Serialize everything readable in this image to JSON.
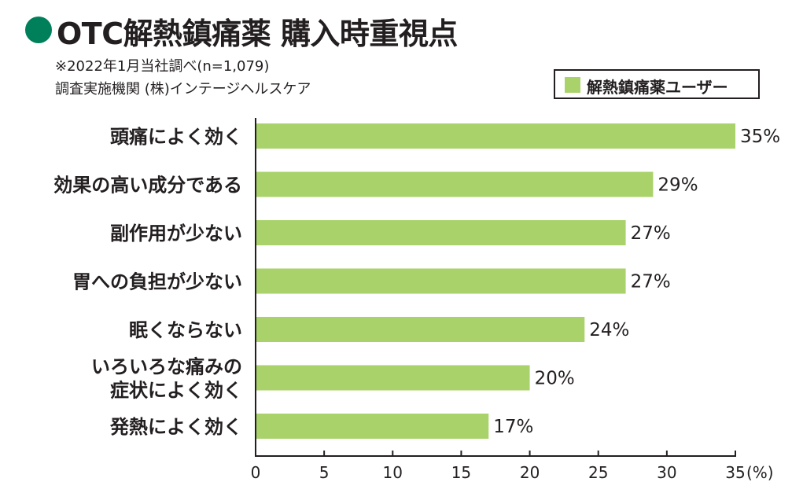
{
  "title": "OTC解熱鎮痛薬 購入時重視点",
  "notes": [
    "※2022年1月当社調べ(n=1,079)",
    "調査実施機関 (株)インテージヘルスケア"
  ],
  "colors": {
    "bar": "#a9d26b",
    "accent": "#00805a",
    "text": "#231f20"
  },
  "chart_data": {
    "type": "bar",
    "orientation": "horizontal",
    "categories": [
      [
        "頭痛によく効く"
      ],
      [
        "効果の高い成分である"
      ],
      [
        "副作用が少ない"
      ],
      [
        "胃への負担が少ない"
      ],
      [
        "眠くならない"
      ],
      [
        "いろいろな痛みの",
        "症状によく効く"
      ],
      [
        "発熱によく効く"
      ]
    ],
    "series": [
      {
        "name": "解熱鎮痛薬ユーザー",
        "values": [
          35,
          29,
          27,
          27,
          24,
          20,
          17
        ]
      }
    ],
    "value_labels": [
      "35%",
      "29%",
      "27%",
      "27%",
      "24%",
      "20%",
      "17%"
    ],
    "xlim": [
      0,
      35
    ],
    "xticks": [
      0,
      5,
      10,
      15,
      20,
      25,
      30,
      35
    ],
    "xunit": "(%)",
    "legend_position": "top-right",
    "grid": false
  }
}
